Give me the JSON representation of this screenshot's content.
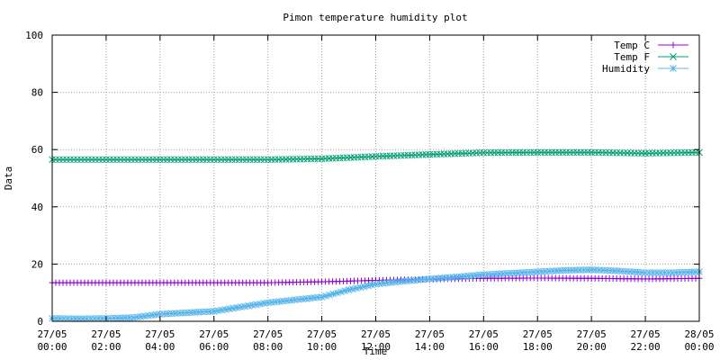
{
  "chart_data": {
    "type": "line",
    "title": "Pimon temperature   humidity plot",
    "xlabel": "Time",
    "ylabel": "Data",
    "ylim": [
      0,
      100
    ],
    "y_ticks": [
      "0",
      "20",
      "40",
      "60",
      "80",
      "100"
    ],
    "x_ticks": [
      [
        "27/05",
        "00:00"
      ],
      [
        "27/05",
        "02:00"
      ],
      [
        "27/05",
        "04:00"
      ],
      [
        "27/05",
        "06:00"
      ],
      [
        "27/05",
        "08:00"
      ],
      [
        "27/05",
        "10:00"
      ],
      [
        "27/05",
        "12:00"
      ],
      [
        "27/05",
        "14:00"
      ],
      [
        "27/05",
        "16:00"
      ],
      [
        "27/05",
        "18:00"
      ],
      [
        "27/05",
        "20:00"
      ],
      [
        "27/05",
        "22:00"
      ],
      [
        "28/05",
        "00:00"
      ]
    ],
    "grid": true,
    "legend_position": "top-right",
    "series": [
      {
        "name": "Temp C",
        "color": "#9400d3",
        "marker": "plus",
        "x": [
          "27/05 00:00",
          "27/05 02:00",
          "27/05 04:00",
          "27/05 06:00",
          "27/05 08:00",
          "27/05 10:00",
          "27/05 12:00",
          "27/05 14:00",
          "27/05 16:00",
          "27/05 18:00",
          "27/05 20:00",
          "27/05 22:00",
          "28/05 00:00"
        ],
        "y": [
          13.5,
          13.5,
          13.5,
          13.5,
          13.5,
          13.8,
          14.3,
          14.7,
          15.0,
          15.1,
          15.0,
          14.8,
          15.0
        ]
      },
      {
        "name": "Temp F",
        "color": "#009e73",
        "marker": "cross",
        "x": [
          "27/05 00:00",
          "27/05 02:00",
          "27/05 04:00",
          "27/05 06:00",
          "27/05 08:00",
          "27/05 10:00",
          "27/05 12:00",
          "27/05 14:00",
          "27/05 16:00",
          "27/05 18:00",
          "27/05 20:00",
          "27/05 22:00",
          "28/05 00:00"
        ],
        "y": [
          56.5,
          56.5,
          56.5,
          56.5,
          56.5,
          56.8,
          57.6,
          58.3,
          58.9,
          59.0,
          59.0,
          58.7,
          59.0
        ]
      },
      {
        "name": "Humidity",
        "color": "#56b4e9",
        "marker": "star",
        "x": [
          "27/05 00:00",
          "27/05 01:00",
          "27/05 02:00",
          "27/05 03:00",
          "27/05 04:00",
          "27/05 05:00",
          "27/05 06:00",
          "27/05 07:00",
          "27/05 08:00",
          "27/05 09:00",
          "27/05 10:00",
          "27/05 11:00",
          "27/05 12:00",
          "27/05 13:00",
          "27/05 14:00",
          "27/05 15:00",
          "27/05 16:00",
          "27/05 17:00",
          "27/05 18:00",
          "27/05 19:00",
          "27/05 20:00",
          "27/05 21:00",
          "27/05 22:00",
          "27/05 23:00",
          "28/05 00:00"
        ],
        "y": [
          1.0,
          0.9,
          1.0,
          1.3,
          2.5,
          3.0,
          3.5,
          5.0,
          6.5,
          7.5,
          8.5,
          11.0,
          13.0,
          14.0,
          14.8,
          15.5,
          16.3,
          16.8,
          17.3,
          17.8,
          18.0,
          17.6,
          17.0,
          17.0,
          17.3
        ]
      }
    ]
  }
}
